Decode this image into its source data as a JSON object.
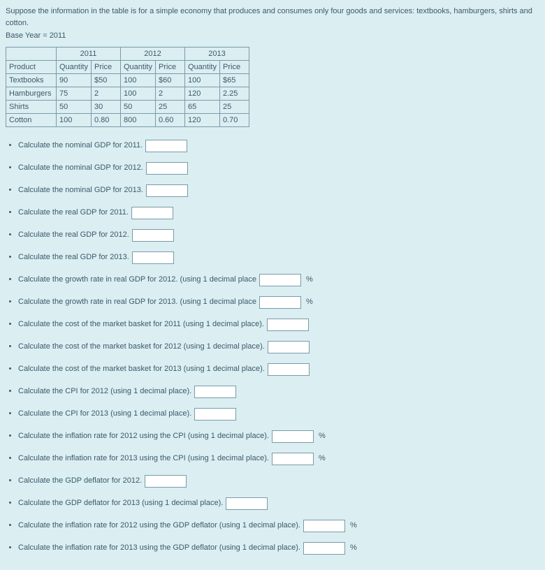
{
  "intro": "Suppose the information in the table is for a simple economy that produces and consumes only four goods and services: textbooks, hamburgers, shirts and cotton.",
  "base_year": "Base Year = 2011",
  "table": {
    "years": [
      "2011",
      "2012",
      "2013"
    ],
    "subheaders": [
      "Product",
      "Quantity",
      "Price",
      "Quantity",
      "Price",
      "Quantity",
      "Price"
    ],
    "rows": [
      [
        "Textbooks",
        "90",
        "$50",
        "100",
        "$60",
        "100",
        "$65"
      ],
      [
        "Hamburgers",
        "75",
        "2",
        "100",
        "2",
        "120",
        "2.25"
      ],
      [
        "Shirts",
        "50",
        "30",
        "50",
        "25",
        "65",
        "25"
      ],
      [
        "Cotton",
        "100",
        "0.80",
        "800",
        "0.60",
        "120",
        "0.70"
      ]
    ]
  },
  "questions": [
    {
      "text": "Calculate the nominal GDP for 2011.",
      "suffix": ""
    },
    {
      "text": "Calculate the nominal GDP for 2012.",
      "suffix": ""
    },
    {
      "text": "Calculate the nominal GDP for 2013.",
      "suffix": ""
    },
    {
      "text": "Calculate the real GDP for 2011.",
      "suffix": ""
    },
    {
      "text": "Calculate the real GDP for 2012.",
      "suffix": ""
    },
    {
      "text": "Calculate the real GDP for 2013.",
      "suffix": ""
    },
    {
      "text": "Calculate the growth rate in real GDP for 2012. (using 1 decimal place",
      "suffix": "%"
    },
    {
      "text": "Calculate the growth rate in real GDP for 2013. (using 1 decimal place",
      "suffix": "%"
    },
    {
      "text": "Calculate the cost of the market basket for 2011 (using 1 decimal place).",
      "suffix": ""
    },
    {
      "text": "Calculate the cost of the market basket for 2012 (using 1 decimal place).",
      "suffix": ""
    },
    {
      "text": "Calculate the cost of the market basket for 2013 (using 1 decimal place).",
      "suffix": ""
    },
    {
      "text": "Calculate the CPI for 2012 (using 1 decimal place).",
      "suffix": ""
    },
    {
      "text": "Calculate the CPI for 2013 (using 1 decimal place).",
      "suffix": ""
    },
    {
      "text": "Calculate the inflation rate for 2012 using the CPI (using 1 decimal place).",
      "suffix": "%"
    },
    {
      "text": "Calculate the inflation rate for 2013 using the CPI (using 1 decimal place).",
      "suffix": "%"
    },
    {
      "text": "Calculate the GDP deflator for 2012.",
      "suffix": ""
    },
    {
      "text": "Calculate the GDP deflator for 2013 (using 1 decimal place).",
      "suffix": ""
    },
    {
      "text": "Calculate the inflation rate for 2012 using the GDP deflator (using 1 decimal place).",
      "suffix": "%"
    },
    {
      "text": "Calculate the inflation rate for 2013 using the GDP deflator (using 1 decimal place).",
      "suffix": "%"
    }
  ]
}
